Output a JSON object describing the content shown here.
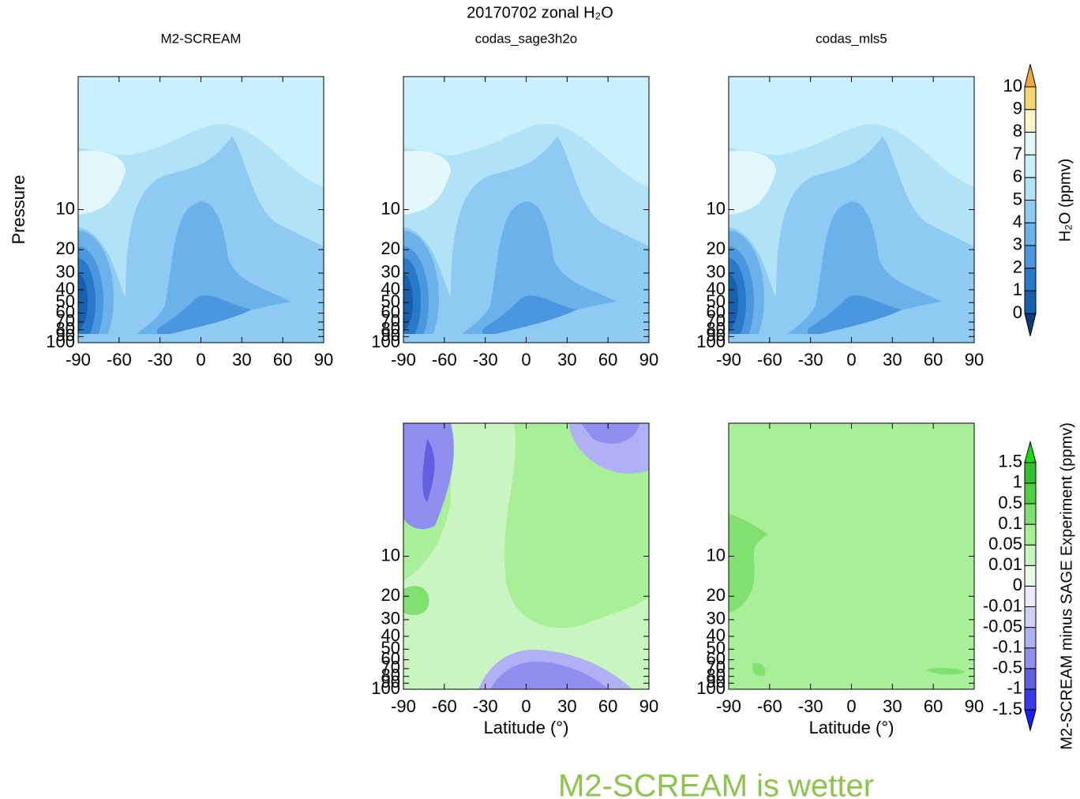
{
  "title": "20170702 zonal H₂O",
  "annotation": "M2-SCREAM is wetter",
  "chart_data": [
    {
      "type": "contour",
      "title": "M2-SCREAM",
      "ylabel": "Pressure",
      "xlim": [
        -90,
        90
      ],
      "xticks": [
        -90,
        -60,
        -30,
        0,
        30,
        60,
        90
      ],
      "ylim": [
        100,
        1
      ],
      "ylog": true,
      "yticks": [
        10,
        20,
        30,
        40,
        50,
        60,
        70,
        80,
        90,
        100
      ]
    },
    {
      "type": "contour",
      "title": "codas_sage3h2o",
      "xlim": [
        -90,
        90
      ],
      "xticks": [
        -90,
        -60,
        -30,
        0,
        30,
        60,
        90
      ],
      "ylim": [
        100,
        1
      ],
      "ylog": true,
      "yticks": [
        10,
        20,
        30,
        40,
        50,
        60,
        70,
        80,
        90,
        100
      ]
    },
    {
      "type": "contour",
      "title": "codas_mls5",
      "xlim": [
        -90,
        90
      ],
      "xticks": [
        -90,
        -60,
        -30,
        0,
        30,
        60,
        90
      ],
      "ylim": [
        100,
        1
      ],
      "ylog": true,
      "yticks": [
        10,
        20,
        30,
        40,
        50,
        60,
        70,
        80,
        90,
        100
      ]
    },
    {
      "type": "contour",
      "xlabel": "Latitude (°)",
      "xlim": [
        -90,
        90
      ],
      "xticks": [
        -90,
        -60,
        -30,
        0,
        30,
        60,
        90
      ],
      "ylim": [
        100,
        1
      ],
      "ylog": true,
      "yticks": [
        10,
        20,
        30,
        40,
        50,
        60,
        70,
        80,
        90,
        100
      ]
    },
    {
      "type": "contour",
      "xlabel": "Latitude (°)",
      "xlim": [
        -90,
        90
      ],
      "xticks": [
        -90,
        -60,
        -30,
        0,
        30,
        60,
        90
      ],
      "ylim": [
        100,
        1
      ],
      "ylog": true,
      "yticks": [
        10,
        20,
        30,
        40,
        50,
        60,
        70,
        80,
        90,
        100
      ]
    }
  ],
  "colorbars": [
    {
      "label": "H₂O (ppmv)",
      "levels": [
        0,
        1,
        2,
        3,
        4,
        5,
        6,
        7,
        8,
        9,
        10
      ],
      "colors": [
        "#0b3a78",
        "#1660b0",
        "#2a78c8",
        "#4a97e0",
        "#6cb2ea",
        "#8fcaf3",
        "#b0e2f8",
        "#c9f0fb",
        "#e3f8fc",
        "#fdf5cc",
        "#f7d870",
        "#f0a840"
      ]
    },
    {
      "label": "M2-SCREAM minus SAGE Experiment (ppmv)",
      "levels": [
        -1.5,
        -1,
        -0.5,
        -0.1,
        -0.05,
        -0.01,
        0,
        0.01,
        0.05,
        0.1,
        0.5,
        1,
        1.5
      ],
      "colors": [
        "#1a1aff",
        "#3a3ae8",
        "#6060e0",
        "#8f8ff0",
        "#b0b0f5",
        "#d0d0f8",
        "#ececfc",
        "#e8fae8",
        "#c8f5c0",
        "#a8f098",
        "#80e070",
        "#50d040",
        "#30c030",
        "#10e010"
      ]
    }
  ]
}
